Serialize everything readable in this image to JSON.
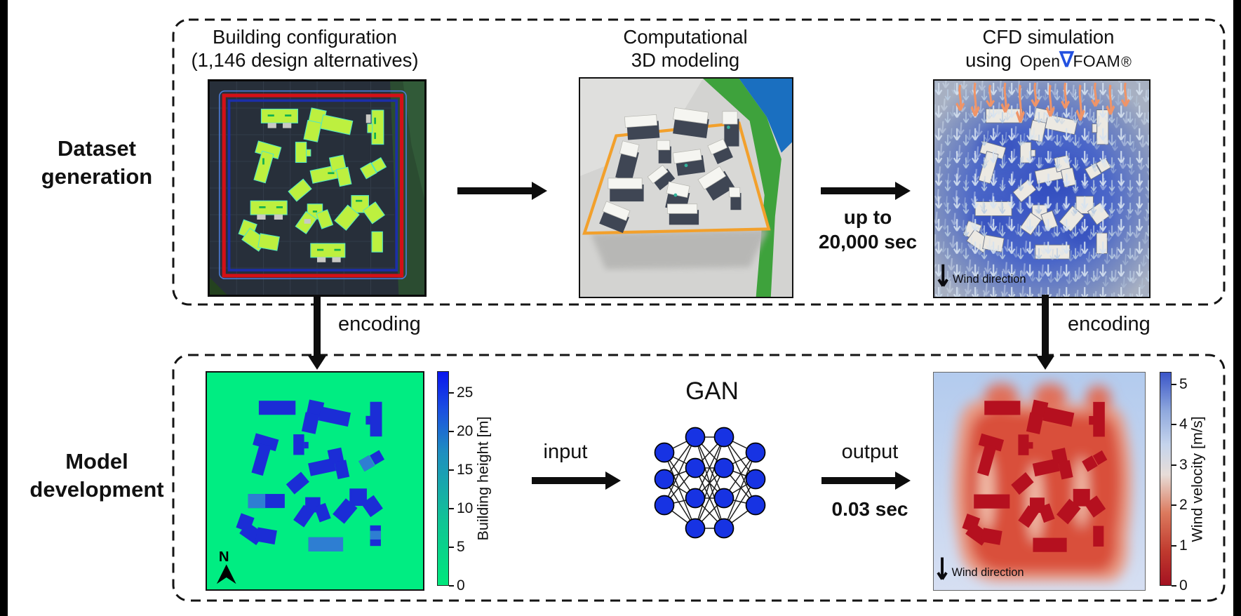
{
  "figure": {
    "rows": {
      "dataset": {
        "line1": "Dataset",
        "line2": "generation"
      },
      "model": {
        "line1": "Model",
        "line2": "development"
      }
    },
    "top": {
      "panel1": {
        "title1": "Building configuration",
        "title2": "(1,146 design alternatives)"
      },
      "panel2": {
        "title1": "Computational",
        "title2": "3D modeling"
      },
      "panel3": {
        "title1": "CFD simulation",
        "using": "using",
        "open": "Open",
        "nabla": "∇",
        "foam": "FOAM",
        "reg": "®"
      },
      "time": {
        "line1": "up to",
        "line2": "20,000 sec"
      }
    },
    "between": {
      "encoding_left": "encoding",
      "encoding_right": "encoding"
    },
    "bottom": {
      "gan_title": "GAN",
      "input_label": "input",
      "output_label": "output",
      "time_label": "0.03 sec",
      "compass": "N",
      "wind_label_cfd": "Wind direction",
      "wind_label_output": "Wind direction"
    },
    "colorbars": {
      "height": {
        "label": "Building height [m]",
        "ticks": [
          "0",
          "5",
          "10",
          "15",
          "20",
          "25"
        ]
      },
      "velocity": {
        "label": "Wind velocity [m/s]",
        "ticks": [
          "0",
          "1",
          "2",
          "3",
          "4",
          "5"
        ]
      }
    },
    "colors": {
      "nabla_blue": "#2351e0",
      "gan_node": "#1733e3",
      "height_low": "#00e87c",
      "height_high": "#0a16ee",
      "velocity_low": "#a41221",
      "velocity_high": "#3a55c8",
      "config_bg": "#272f3a",
      "height_map_bg": "#00ed82",
      "building_fill": "#bdf03f"
    }
  }
}
